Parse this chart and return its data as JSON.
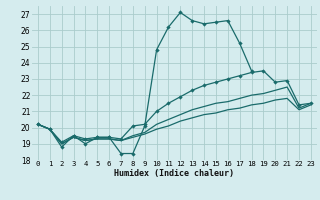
{
  "xlabel": "Humidex (Indice chaleur)",
  "bg_color": "#d5ecee",
  "grid_color": "#aacccc",
  "line_color": "#1a6b6b",
  "xlim": [
    -0.5,
    23.5
  ],
  "ylim": [
    18,
    27.5
  ],
  "yticks": [
    18,
    19,
    20,
    21,
    22,
    23,
    24,
    25,
    26,
    27
  ],
  "xticks": [
    0,
    1,
    2,
    3,
    4,
    5,
    6,
    7,
    8,
    9,
    10,
    11,
    12,
    13,
    14,
    15,
    16,
    17,
    18,
    19,
    20,
    21,
    22,
    23
  ],
  "s1_x": [
    0,
    1,
    2,
    3,
    4,
    5,
    6,
    7,
    8,
    9,
    10,
    11,
    12,
    13,
    14,
    15,
    16,
    17,
    18
  ],
  "s1_y": [
    20.2,
    19.9,
    18.8,
    19.5,
    19.0,
    19.4,
    19.4,
    18.4,
    18.4,
    20.1,
    24.8,
    26.2,
    27.1,
    26.6,
    26.4,
    26.5,
    26.6,
    25.2,
    23.5
  ],
  "s2_x": [
    0,
    1,
    2,
    3,
    4,
    5,
    6,
    7,
    8,
    9,
    10,
    11,
    12,
    13,
    14,
    15,
    16,
    17,
    18,
    19,
    20,
    21,
    22,
    23
  ],
  "s2_y": [
    20.2,
    19.9,
    19.1,
    19.5,
    19.3,
    19.4,
    19.4,
    19.3,
    20.1,
    20.2,
    21.0,
    21.5,
    21.9,
    22.3,
    22.6,
    22.8,
    23.0,
    23.2,
    23.4,
    23.5,
    22.8,
    22.9,
    21.4,
    21.5
  ],
  "s3_x": [
    0,
    1,
    2,
    3,
    4,
    5,
    6,
    7,
    8,
    9,
    10,
    11,
    12,
    13,
    14,
    15,
    16,
    17,
    18,
    19,
    20,
    21,
    22,
    23
  ],
  "s3_y": [
    20.2,
    19.9,
    19.0,
    19.4,
    19.2,
    19.3,
    19.3,
    19.2,
    19.5,
    19.7,
    20.2,
    20.5,
    20.8,
    21.1,
    21.3,
    21.5,
    21.6,
    21.8,
    22.0,
    22.1,
    22.3,
    22.5,
    21.2,
    21.5
  ],
  "s4_x": [
    0,
    1,
    2,
    3,
    4,
    5,
    6,
    7,
    8,
    9,
    10,
    11,
    12,
    13,
    14,
    15,
    16,
    17,
    18,
    19,
    20,
    21,
    22,
    23
  ],
  "s4_y": [
    20.2,
    19.9,
    19.0,
    19.4,
    19.2,
    19.3,
    19.3,
    19.2,
    19.4,
    19.6,
    19.9,
    20.1,
    20.4,
    20.6,
    20.8,
    20.9,
    21.1,
    21.2,
    21.4,
    21.5,
    21.7,
    21.8,
    21.1,
    21.4
  ]
}
